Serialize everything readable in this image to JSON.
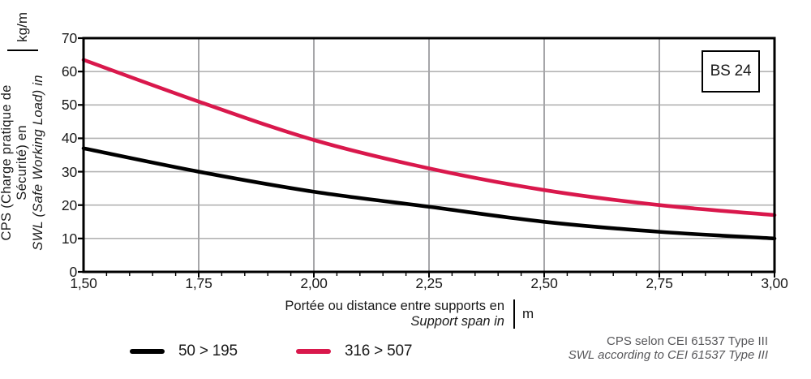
{
  "chart": {
    "badge": "BS 24",
    "y_axis": {
      "label_fr": "CPS (Charge pratique de Sécurité) en",
      "label_en": "SWL (Safe Working Load) in",
      "unit": "kg/m",
      "tick_labels": [
        "0",
        "10",
        "20",
        "30",
        "40",
        "50",
        "60",
        "70"
      ]
    },
    "x_axis": {
      "label_fr": "Portée ou distance entre supports en",
      "label_en": "Support span in",
      "unit": "m",
      "tick_labels": [
        "1,50",
        "1,75",
        "2,00",
        "2,25",
        "2,50",
        "2,75",
        "3,00"
      ]
    },
    "legend": {
      "items": [
        {
          "label": "50 > 195",
          "color": "#000000"
        },
        {
          "label": "316 > 507",
          "color": "#d9184c"
        }
      ]
    },
    "footnote": {
      "line1_fr": "CPS selon CEI 61537 Type III",
      "line2_en": "SWL according to CEI 61537 Type III"
    },
    "colors": {
      "grid_horizontal": "#b3b3b3",
      "grid_vertical": "#a6a6a9",
      "axis": "#000000"
    }
  },
  "chart_data": {
    "type": "line",
    "title": "",
    "x": [
      1.5,
      1.75,
      2.0,
      2.25,
      2.5,
      2.75,
      3.0
    ],
    "series": [
      {
        "name": "50 > 195",
        "color": "#000000",
        "values": [
          37,
          30,
          24,
          19.5,
          15,
          12,
          10
        ]
      },
      {
        "name": "316 > 507",
        "color": "#d9184c",
        "values": [
          63.5,
          51,
          39.5,
          31,
          24.5,
          20,
          17
        ]
      }
    ],
    "xlabel": "Portée ou distance entre supports en / Support span in",
    "x_unit": "m",
    "ylabel": "CPS (Charge pratique de Sécurité) en / SWL (Safe Working Load) in",
    "y_unit": "kg/m",
    "xlim": [
      1.5,
      3.0
    ],
    "ylim": [
      0,
      70
    ],
    "x_tick_step": 0.25,
    "x_minor_tick_step": 0.05,
    "y_tick_step": 10,
    "grid": true,
    "legend_position": "bottom",
    "annotations": [
      "BS 24"
    ]
  }
}
